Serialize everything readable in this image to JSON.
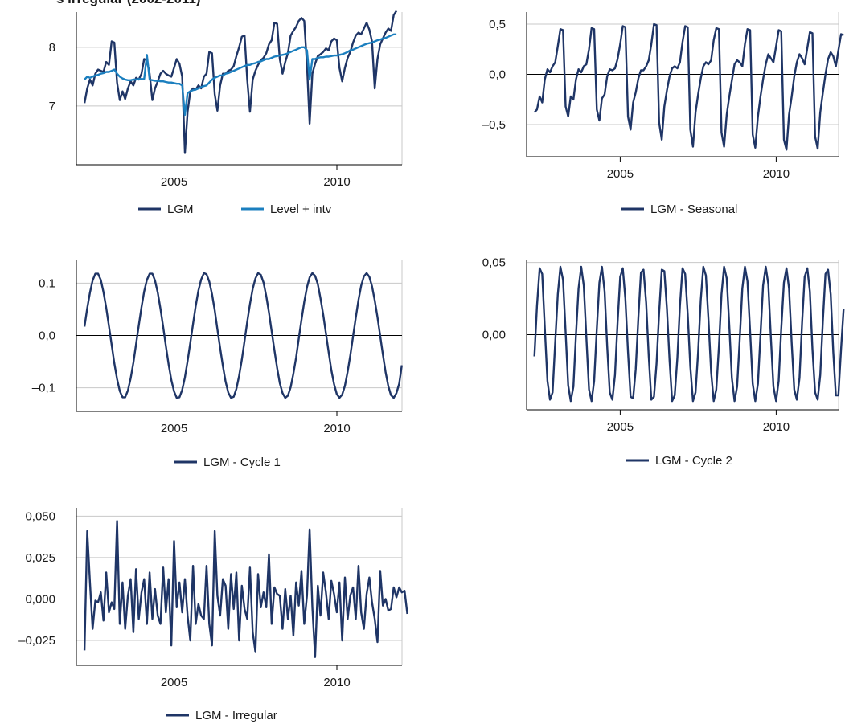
{
  "colors": {
    "navy": "#1f3566",
    "light_blue": "#1b7fbf",
    "grid": "#c8c8c8",
    "axis": "#000000"
  },
  "title_fragment": "s irregular (2002-2011)",
  "chart_data": [
    {
      "type": "line",
      "title": "",
      "xlabel": "",
      "ylabel": "",
      "xlim": [
        2002.0,
        2012.0
      ],
      "ylim": [
        6.0,
        8.6
      ],
      "xticks": [
        2005,
        2010
      ],
      "xtick_labels": [
        "2005",
        "2010"
      ],
      "yticks": [
        7,
        8
      ],
      "ytick_labels": [
        "7",
        "8"
      ],
      "zero_line": false,
      "grid": "horizontal",
      "legend": "bottom",
      "series": [
        {
          "name": "LGM",
          "color": "#1f3566",
          "x_start": 2002.25,
          "x_step": 0.0833,
          "values": [
            7.05,
            7.3,
            7.45,
            7.35,
            7.55,
            7.62,
            7.6,
            7.58,
            7.75,
            7.7,
            8.1,
            8.08,
            7.4,
            7.1,
            7.25,
            7.12,
            7.3,
            7.42,
            7.35,
            7.48,
            7.45,
            7.55,
            7.8,
            7.78,
            7.55,
            7.1,
            7.3,
            7.42,
            7.55,
            7.6,
            7.55,
            7.52,
            7.5,
            7.65,
            7.8,
            7.72,
            7.5,
            6.2,
            6.9,
            7.25,
            7.3,
            7.28,
            7.35,
            7.3,
            7.5,
            7.55,
            7.92,
            7.9,
            7.2,
            6.92,
            7.35,
            7.55,
            7.55,
            7.6,
            7.62,
            7.68,
            7.85,
            8.0,
            8.18,
            8.2,
            7.45,
            6.9,
            7.45,
            7.6,
            7.7,
            7.78,
            7.82,
            7.9,
            8.05,
            8.12,
            8.42,
            8.4,
            7.8,
            7.55,
            7.75,
            7.9,
            8.2,
            8.28,
            8.35,
            8.45,
            8.5,
            8.45,
            7.7,
            6.7,
            7.55,
            7.72,
            7.85,
            7.88,
            7.92,
            7.98,
            7.95,
            8.1,
            8.15,
            8.12,
            7.65,
            7.42,
            7.65,
            7.82,
            7.92,
            8.08,
            8.2,
            8.25,
            8.22,
            8.32,
            8.42,
            8.3,
            8.1,
            7.3,
            7.8,
            8.05,
            8.15,
            8.25,
            8.32,
            8.28,
            8.55,
            8.62
          ]
        },
        {
          "name": "Level + intv",
          "color": "#1b7fbf",
          "x_start": 2002.25,
          "x_step": 0.0833,
          "values": [
            7.45,
            7.5,
            7.48,
            7.5,
            7.52,
            7.53,
            7.55,
            7.56,
            7.58,
            7.58,
            7.6,
            7.62,
            7.55,
            7.5,
            7.47,
            7.45,
            7.44,
            7.44,
            7.45,
            7.45,
            7.46,
            7.46,
            7.46,
            7.87,
            7.45,
            7.44,
            7.43,
            7.43,
            7.42,
            7.42,
            7.41,
            7.4,
            7.4,
            7.39,
            7.38,
            7.38,
            7.35,
            6.85,
            7.22,
            7.25,
            7.27,
            7.28,
            7.3,
            7.32,
            7.34,
            7.35,
            7.4,
            7.45,
            7.48,
            7.5,
            7.52,
            7.52,
            7.55,
            7.56,
            7.58,
            7.6,
            7.62,
            7.64,
            7.66,
            7.68,
            7.7,
            7.7,
            7.72,
            7.73,
            7.75,
            7.76,
            7.78,
            7.8,
            7.8,
            7.82,
            7.84,
            7.85,
            7.86,
            7.87,
            7.88,
            7.9,
            7.92,
            7.94,
            7.96,
            7.98,
            8.0,
            8.0,
            7.95,
            7.45,
            7.8,
            7.8,
            7.82,
            7.83,
            7.83,
            7.84,
            7.84,
            7.85,
            7.86,
            7.86,
            7.87,
            7.88,
            7.9,
            7.92,
            7.95,
            7.96,
            7.98,
            8.0,
            8.02,
            8.04,
            8.06,
            8.07,
            8.08,
            8.1,
            8.12,
            8.13,
            8.15,
            8.16,
            8.18,
            8.2,
            8.22,
            8.22
          ]
        }
      ]
    },
    {
      "type": "line",
      "title": "",
      "xlabel": "",
      "ylabel": "",
      "xlim": [
        2002.0,
        2012.0
      ],
      "ylim": [
        -0.82,
        0.62
      ],
      "xticks": [
        2005,
        2010
      ],
      "xtick_labels": [
        "2005",
        "2010"
      ],
      "yticks": [
        0.5,
        0.0,
        -0.5
      ],
      "ytick_labels": [
        "0,5",
        "0,0",
        "–0,5"
      ],
      "zero_line": true,
      "grid": "horizontal",
      "legend": "bottom",
      "series": [
        {
          "name": "LGM - Seasonal",
          "color": "#1f3566",
          "x_start": 2002.25,
          "x_step": 0.0833,
          "values": [
            -0.38,
            -0.35,
            -0.22,
            -0.28,
            -0.05,
            0.05,
            0.02,
            0.08,
            0.12,
            0.28,
            0.45,
            0.44,
            -0.32,
            -0.42,
            -0.22,
            -0.25,
            -0.05,
            0.05,
            0.02,
            0.08,
            0.1,
            0.25,
            0.46,
            0.45,
            -0.35,
            -0.46,
            -0.24,
            -0.2,
            -0.02,
            0.05,
            0.04,
            0.06,
            0.15,
            0.3,
            0.48,
            0.47,
            -0.42,
            -0.55,
            -0.28,
            -0.18,
            -0.04,
            0.04,
            0.04,
            0.08,
            0.14,
            0.3,
            0.5,
            0.49,
            -0.48,
            -0.65,
            -0.32,
            -0.16,
            -0.02,
            0.06,
            0.08,
            0.06,
            0.12,
            0.32,
            0.48,
            0.47,
            -0.55,
            -0.72,
            -0.38,
            -0.2,
            -0.04,
            0.08,
            0.12,
            0.1,
            0.14,
            0.34,
            0.46,
            0.45,
            -0.58,
            -0.72,
            -0.4,
            -0.22,
            -0.06,
            0.1,
            0.14,
            0.12,
            0.08,
            0.3,
            0.45,
            0.44,
            -0.6,
            -0.73,
            -0.42,
            -0.22,
            -0.05,
            0.1,
            0.2,
            0.16,
            0.12,
            0.28,
            0.44,
            0.43,
            -0.65,
            -0.75,
            -0.4,
            -0.22,
            -0.02,
            0.12,
            0.2,
            0.16,
            0.1,
            0.26,
            0.42,
            0.41,
            -0.62,
            -0.74,
            -0.38,
            -0.18,
            0.0,
            0.15,
            0.22,
            0.18,
            0.08,
            0.24,
            0.4,
            0.39
          ]
        }
      ]
    },
    {
      "type": "line",
      "title": "",
      "xlabel": "",
      "ylabel": "",
      "xlim": [
        2002.0,
        2012.0
      ],
      "ylim": [
        -0.145,
        0.145
      ],
      "xticks": [
        2005,
        2010
      ],
      "xtick_labels": [
        "2005",
        "2010"
      ],
      "yticks": [
        0.1,
        0.0,
        -0.1
      ],
      "ytick_labels": [
        "0,1",
        "0,0",
        "–0,1"
      ],
      "zero_line": true,
      "grid": "horizontal",
      "legend": "bottom",
      "series": [
        {
          "name": "LGM - Cycle 1",
          "color": "#1f3566",
          "x_start": 2002.25,
          "x_step": 0.0833,
          "values": [
            0.017,
            0.052,
            0.082,
            0.105,
            0.118,
            0.118,
            0.106,
            0.083,
            0.053,
            0.018,
            -0.018,
            -0.053,
            -0.083,
            -0.106,
            -0.118,
            -0.118,
            -0.105,
            -0.082,
            -0.052,
            -0.017,
            0.019,
            0.054,
            0.084,
            0.106,
            0.118,
            0.118,
            0.105,
            0.082,
            0.051,
            0.016,
            -0.02,
            -0.055,
            -0.085,
            -0.107,
            -0.119,
            -0.118,
            -0.104,
            -0.08,
            -0.049,
            -0.014,
            0.022,
            0.056,
            0.086,
            0.107,
            0.119,
            0.117,
            0.103,
            0.079,
            0.048,
            0.012,
            -0.024,
            -0.058,
            -0.088,
            -0.109,
            -0.119,
            -0.117,
            -0.102,
            -0.077,
            -0.046,
            -0.01,
            0.026,
            0.06,
            0.089,
            0.109,
            0.119,
            0.116,
            0.101,
            0.075,
            0.044,
            0.008,
            -0.028,
            -0.062,
            -0.091,
            -0.11,
            -0.119,
            -0.115,
            -0.099,
            -0.073,
            -0.042,
            -0.006,
            0.03,
            0.064,
            0.092,
            0.111,
            0.119,
            0.114,
            0.098,
            0.071,
            0.04,
            0.004,
            -0.032,
            -0.066,
            -0.093,
            -0.112,
            -0.119,
            -0.113,
            -0.096,
            -0.069,
            -0.038,
            -0.002,
            0.034,
            0.068,
            0.095,
            0.113,
            0.119,
            0.112,
            0.094,
            0.067,
            0.035,
            -0.001,
            -0.036,
            -0.07,
            -0.097,
            -0.114,
            -0.119,
            -0.11,
            -0.092,
            -0.057
          ]
        }
      ]
    },
    {
      "type": "line",
      "title": "",
      "xlabel": "",
      "ylabel": "",
      "xlim": [
        2002.0,
        2012.0
      ],
      "ylim": [
        -0.052,
        0.052
      ],
      "xticks": [
        2005,
        2010
      ],
      "xtick_labels": [
        "2005",
        "2010"
      ],
      "yticks": [
        0.05,
        0.0
      ],
      "ytick_labels": [
        "0,05",
        "0,00"
      ],
      "zero_line": true,
      "grid": "horizontal",
      "legend": "bottom",
      "series": [
        {
          "name": "LGM - Cycle 2",
          "color": "#1f3566",
          "x_start": 2002.25,
          "x_step": 0.0833,
          "values": [
            -0.015,
            0.02,
            0.046,
            0.042,
            0.005,
            -0.032,
            -0.045,
            -0.04,
            -0.005,
            0.028,
            0.047,
            0.038,
            0.002,
            -0.035,
            -0.046,
            -0.036,
            0.0,
            0.032,
            0.047,
            0.034,
            -0.002,
            -0.038,
            -0.046,
            -0.032,
            0.004,
            0.036,
            0.047,
            0.03,
            -0.008,
            -0.04,
            -0.045,
            -0.028,
            0.008,
            0.04,
            0.046,
            0.025,
            -0.012,
            -0.043,
            -0.044,
            -0.024,
            0.012,
            0.043,
            0.045,
            0.022,
            -0.015,
            -0.045,
            -0.043,
            -0.02,
            0.015,
            0.045,
            0.044,
            0.018,
            -0.018,
            -0.046,
            -0.042,
            -0.016,
            0.02,
            0.046,
            0.042,
            0.014,
            -0.022,
            -0.046,
            -0.04,
            -0.012,
            0.024,
            0.047,
            0.041,
            0.01,
            -0.026,
            -0.046,
            -0.038,
            -0.008,
            0.028,
            0.047,
            0.039,
            0.006,
            -0.03,
            -0.046,
            -0.036,
            -0.004,
            0.032,
            0.047,
            0.037,
            0.002,
            -0.034,
            -0.046,
            -0.034,
            0.0,
            0.034,
            0.047,
            0.035,
            -0.002,
            -0.036,
            -0.046,
            -0.032,
            0.004,
            0.036,
            0.046,
            0.032,
            -0.006,
            -0.038,
            -0.045,
            -0.03,
            0.008,
            0.04,
            0.046,
            0.03,
            -0.01,
            -0.04,
            -0.045,
            -0.028,
            0.01,
            0.042,
            0.045,
            0.028,
            -0.012,
            -0.042,
            -0.042,
            -0.01,
            0.018
          ]
        }
      ]
    },
    {
      "type": "line",
      "title": "",
      "xlabel": "",
      "ylabel": "",
      "xlim": [
        2002.0,
        2012.0
      ],
      "ylim": [
        -0.04,
        0.055
      ],
      "xticks": [
        2005,
        2010
      ],
      "xtick_labels": [
        "2005",
        "2010"
      ],
      "yticks": [
        0.05,
        0.025,
        0.0,
        -0.025
      ],
      "ytick_labels": [
        "0,050",
        "0,025",
        "0,000",
        "–0,025"
      ],
      "zero_line": true,
      "grid": "horizontal",
      "legend": "bottom",
      "series": [
        {
          "name": "LGM - Irregular",
          "color": "#1f3566",
          "x_start": 2002.25,
          "x_step": 0.0833,
          "values": [
            -0.031,
            0.041,
            0.01,
            -0.018,
            -0.001,
            -0.002,
            0.004,
            -0.013,
            0.016,
            -0.008,
            -0.002,
            -0.006,
            0.047,
            -0.015,
            0.01,
            -0.018,
            0.002,
            0.012,
            -0.02,
            0.018,
            -0.012,
            0.004,
            0.012,
            -0.015,
            0.016,
            -0.012,
            0.006,
            -0.01,
            -0.015,
            0.019,
            -0.008,
            0.012,
            -0.028,
            0.035,
            -0.005,
            0.01,
            -0.008,
            0.012,
            -0.01,
            -0.025,
            0.02,
            -0.015,
            -0.003,
            -0.01,
            -0.012,
            0.02,
            -0.015,
            -0.028,
            0.041,
            0.002,
            -0.01,
            0.012,
            0.008,
            -0.018,
            0.015,
            -0.006,
            0.016,
            -0.025,
            0.008,
            -0.006,
            -0.012,
            0.019,
            -0.02,
            -0.032,
            0.015,
            -0.005,
            0.004,
            -0.005,
            0.027,
            -0.015,
            0.007,
            0.003,
            0.002,
            -0.018,
            0.006,
            -0.012,
            0.002,
            -0.022,
            0.01,
            -0.004,
            0.017,
            -0.015,
            0.002,
            0.042,
            -0.005,
            -0.035,
            0.008,
            -0.01,
            0.016,
            0.004,
            -0.012,
            0.011,
            0.003,
            -0.008,
            0.01,
            -0.025,
            0.013,
            -0.012,
            0.002,
            0.007,
            -0.012,
            0.02,
            -0.008,
            -0.018,
            0.003,
            0.013,
            -0.002,
            -0.012,
            -0.026,
            0.017,
            -0.004,
            0.0,
            -0.007,
            -0.006,
            0.007,
            0.001,
            0.007,
            0.004,
            0.005,
            -0.009
          ]
        }
      ]
    }
  ]
}
